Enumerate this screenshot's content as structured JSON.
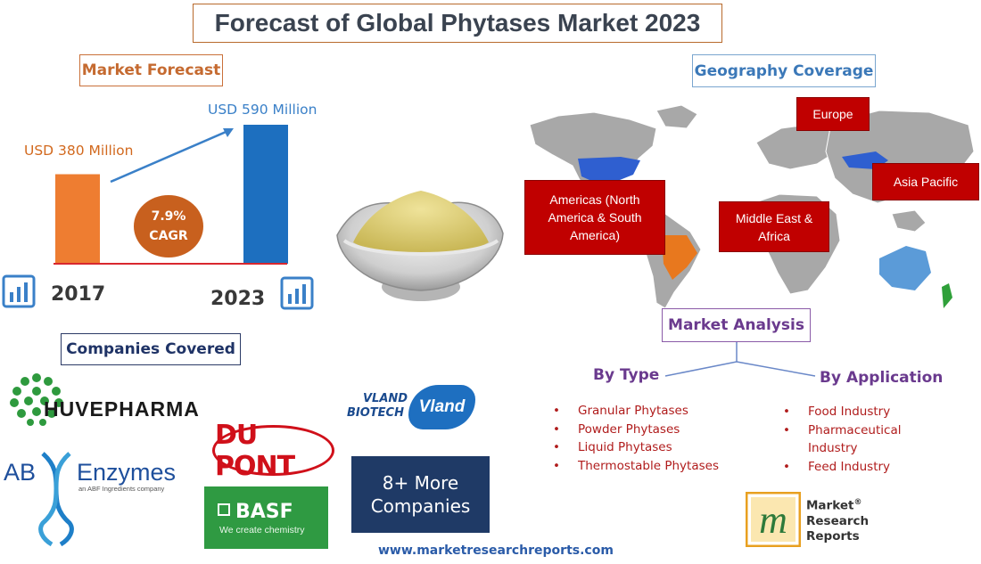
{
  "title": "Forecast of Global Phytases Market 2023",
  "sections": {
    "market_forecast": "Market Forecast",
    "geography": "Geography Coverage",
    "companies": "Companies Covered",
    "analysis": "Market Analysis"
  },
  "chart_data": {
    "type": "bar",
    "categories": [
      "2017",
      "2023"
    ],
    "values": [
      380,
      590
    ],
    "value_labels": [
      "USD 380 Million",
      "USD 590 Million"
    ],
    "unit": "USD Million",
    "annotation": {
      "value": "7.9%",
      "label": "CAGR"
    },
    "colors": [
      "#ee7d31",
      "#1d6fbf"
    ]
  },
  "regions": {
    "europe": "Europe",
    "asia_pacific": "Asia Pacific",
    "americas": [
      "Americas (North",
      "America & South",
      "America)"
    ],
    "mea": [
      "Middle East &",
      "Africa"
    ]
  },
  "analysis": {
    "by_type": {
      "heading": "By Type",
      "items": [
        "Granular Phytases",
        "Powder Phytases",
        "Liquid Phytases",
        "Thermostable Phytases"
      ]
    },
    "by_application": {
      "heading": "By Application",
      "items": [
        "Food Industry",
        "Pharmaceutical Industry",
        "Feed Industry"
      ]
    },
    "bullet": "•"
  },
  "companies": {
    "huvepharma": "HUVEPHARMA",
    "ab": "AB",
    "enzymes": "Enzymes",
    "abf_tag": "an ABF Ingredients company",
    "dupont": "DU PONT",
    "basf": "BASF",
    "basf_tagline": "We create chemistry",
    "vland_line1": "VLAND",
    "vland_line2": "BIOTECH",
    "vland_badge": "Vland",
    "more": [
      "8+ More",
      "Companies"
    ]
  },
  "publisher": {
    "lines": [
      "Market",
      "Research",
      "Reports"
    ],
    "reg": "®",
    "logo_letter": "m"
  },
  "website": "www.marketresearchreports.com",
  "colors": {
    "accent_orange": "#c56a30",
    "accent_blue": "#3a80c8",
    "region_red": "#c00000",
    "analysis_purple": "#6a3a8e",
    "list_red": "#b01c1c"
  }
}
